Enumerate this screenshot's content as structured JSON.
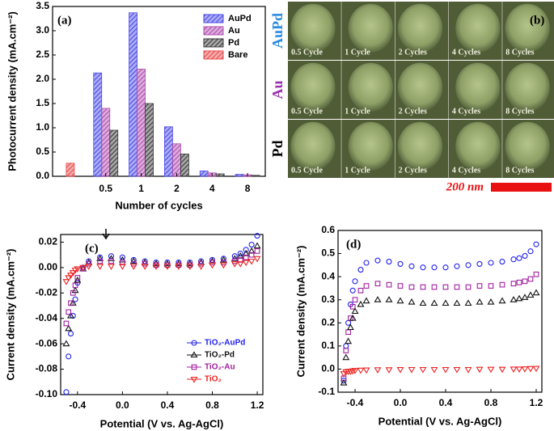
{
  "chart_data": [
    {
      "type": "bar",
      "label": "(a)",
      "xlabel": "Number of cycles",
      "ylabel": "Photocurrent density (mA.cm⁻²)",
      "categories": [
        null,
        "0.5",
        "1",
        "2",
        "4",
        "8"
      ],
      "series": [
        {
          "name": "AuPd",
          "color": "#4a4ae8",
          "values": [
            null,
            2.13,
            3.37,
            1.02,
            0.11,
            0.04
          ]
        },
        {
          "name": "Au",
          "color": "#b04cb0",
          "values": [
            null,
            1.4,
            2.21,
            0.67,
            0.07,
            0.03
          ]
        },
        {
          "name": "Pd",
          "color": "#3a3a3a",
          "values": [
            null,
            0.95,
            1.5,
            0.46,
            0.05,
            0.02
          ]
        },
        {
          "name": "Bare",
          "color": "#e84a4a",
          "values": [
            0.27,
            null,
            null,
            null,
            null,
            null
          ]
        }
      ],
      "ylim": [
        0,
        3.5
      ],
      "yticks": [
        {
          "value": 0,
          "label": "0.0"
        },
        0.5,
        {
          "value": 1,
          "label": "1.0"
        },
        1.5,
        {
          "value": 2,
          "label": "2.0"
        },
        2.5,
        {
          "value": 3,
          "label": "3.0"
        },
        3.5
      ],
      "legend": "upper right"
    },
    {
      "type": "scatter",
      "label": "(c)",
      "xlabel": "Potential (V vs. Ag-AgCl)",
      "ylabel": "Current density (mA.cm⁻²)",
      "x": [
        -0.5,
        -0.48,
        -0.46,
        -0.44,
        -0.42,
        -0.4,
        -0.35,
        -0.3,
        -0.2,
        -0.1,
        0,
        0.1,
        0.2,
        0.3,
        0.4,
        0.5,
        0.6,
        0.7,
        0.8,
        0.9,
        1.0,
        1.05,
        1.1,
        1.15,
        1.2
      ],
      "series": [
        {
          "name": "TiO₂-AuPd",
          "color": "#2222ee",
          "marker": "circle",
          "values": [
            -0.098,
            -0.07,
            -0.052,
            -0.038,
            -0.025,
            -0.012,
            0.0,
            0.005,
            0.008,
            0.009,
            0.008,
            0.006,
            0.005,
            0.004,
            0.004,
            0.004,
            0.004,
            0.005,
            0.006,
            0.007,
            0.009,
            0.011,
            0.014,
            0.018,
            0.025
          ]
        },
        {
          "name": "TiO₂-Pd",
          "color": "#111111",
          "marker": "triangle-up",
          "values": [
            -0.06,
            -0.048,
            -0.038,
            -0.028,
            -0.018,
            -0.01,
            -0.001,
            0.004,
            0.007,
            0.007,
            0.006,
            0.005,
            0.004,
            0.003,
            0.003,
            0.003,
            0.003,
            0.004,
            0.005,
            0.006,
            0.007,
            0.009,
            0.011,
            0.013,
            0.017
          ]
        },
        {
          "name": "TiO₂-Au",
          "color": "#a020a0",
          "marker": "square",
          "values": [
            -0.044,
            -0.035,
            -0.028,
            -0.02,
            -0.014,
            -0.008,
            -0.001,
            0.003,
            0.005,
            0.005,
            0.004,
            0.003,
            0.003,
            0.002,
            0.002,
            0.002,
            0.002,
            0.003,
            0.004,
            0.004,
            0.005,
            0.006,
            0.008,
            0.01,
            0.013
          ]
        },
        {
          "name": "TiO₂",
          "color": "#ee2222",
          "marker": "triangle-down",
          "values": [
            -0.011,
            -0.008,
            -0.006,
            -0.004,
            -0.002,
            -0.001,
            0.0,
            0.001,
            0.001,
            0.001,
            0.001,
            0.001,
            0.001,
            0.001,
            0.001,
            0.001,
            0.001,
            0.001,
            0.002,
            0.002,
            0.003,
            0.003,
            0.004,
            0.005,
            0.007
          ]
        }
      ],
      "xlim": [
        -0.55,
        1.25
      ],
      "xticks": [
        -0.4,
        {
          "value": 0,
          "label": "0.0"
        },
        0.4,
        0.8,
        1.2
      ],
      "ylim": [
        -0.1,
        0.026
      ],
      "yticks": [
        {
          "value": -0.1,
          "label": "-0.10"
        },
        -0.08,
        -0.06,
        -0.04,
        -0.02,
        {
          "value": 0,
          "label": "0.00"
        },
        0.02
      ],
      "legend": "lower right"
    },
    {
      "type": "scatter",
      "label": "(d)",
      "xlabel": "Potential (V vs. Ag-AgCl)",
      "ylabel": "Current density (mA.cm⁻²)",
      "x": [
        -0.5,
        -0.48,
        -0.46,
        -0.44,
        -0.42,
        -0.4,
        -0.35,
        -0.3,
        -0.2,
        -0.1,
        0,
        0.1,
        0.2,
        0.3,
        0.4,
        0.5,
        0.6,
        0.7,
        0.8,
        0.9,
        1.0,
        1.05,
        1.1,
        1.15,
        1.2
      ],
      "series": [
        {
          "color": "#2222ee",
          "marker": "circle",
          "values": [
            -0.05,
            0.1,
            0.2,
            0.28,
            0.34,
            0.38,
            0.43,
            0.46,
            0.47,
            0.465,
            0.455,
            0.445,
            0.44,
            0.44,
            0.44,
            0.445,
            0.45,
            0.455,
            0.46,
            0.465,
            0.475,
            0.48,
            0.49,
            0.51,
            0.54
          ]
        },
        {
          "color": "#a020a0",
          "marker": "square",
          "values": [
            -0.04,
            0.08,
            0.16,
            0.22,
            0.27,
            0.3,
            0.34,
            0.36,
            0.37,
            0.365,
            0.36,
            0.355,
            0.355,
            0.355,
            0.355,
            0.355,
            0.355,
            0.36,
            0.36,
            0.365,
            0.37,
            0.375,
            0.38,
            0.39,
            0.41
          ]
        },
        {
          "color": "#111111",
          "marker": "triangle-up",
          "values": [
            -0.06,
            0.05,
            0.12,
            0.18,
            0.22,
            0.25,
            0.28,
            0.295,
            0.3,
            0.3,
            0.295,
            0.29,
            0.285,
            0.285,
            0.285,
            0.285,
            0.285,
            0.29,
            0.29,
            0.295,
            0.3,
            0.305,
            0.31,
            0.32,
            0.33
          ]
        },
        {
          "color": "#ee2222",
          "marker": "triangle-down",
          "values": [
            -0.02,
            -0.012,
            -0.01,
            -0.01,
            -0.008,
            -0.006,
            -0.005,
            -0.004,
            -0.003,
            -0.003,
            -0.002,
            -0.002,
            -0.002,
            -0.002,
            -0.002,
            -0.002,
            -0.002,
            -0.001,
            -0.001,
            -0.001,
            0.0,
            0.0,
            0.001,
            0.002,
            0.003
          ]
        }
      ],
      "xlim": [
        -0.55,
        1.25
      ],
      "xticks": [
        -0.4,
        {
          "value": 0,
          "label": "0.0"
        },
        0.4,
        0.8,
        1.2
      ],
      "ylim": [
        -0.1,
        0.6
      ],
      "yticks": [
        -0.1,
        {
          "value": 0,
          "label": "0.0"
        },
        0.1,
        0.2,
        0.3,
        0.4,
        0.5,
        0.6
      ]
    }
  ],
  "image_panel": {
    "label": "(b)",
    "rows": [
      {
        "name": "AuPd",
        "color": "#2a8ae0"
      },
      {
        "name": "Au",
        "color": "#9a30b0"
      },
      {
        "name": "Pd",
        "color": "#000000"
      }
    ],
    "columns": [
      "0.5 Cycle",
      "1 Cycle",
      "2 Cycles",
      "4 Cycles",
      "8 Cycles"
    ],
    "scale_bar": "200 nm"
  }
}
